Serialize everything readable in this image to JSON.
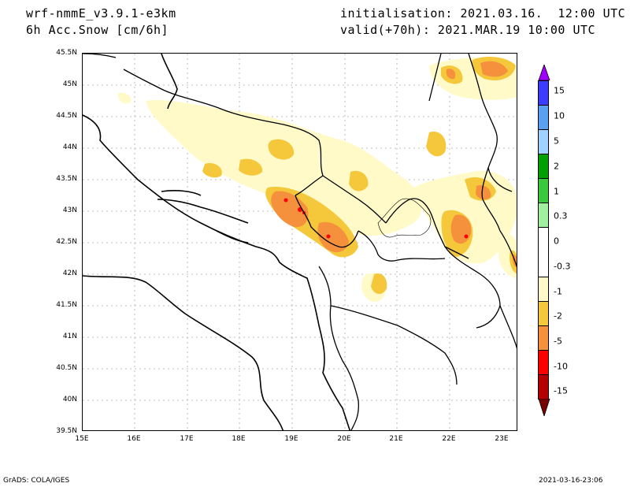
{
  "header": {
    "model": "wrf-nmmE_v3.9.1-e3km",
    "field": "6h Acc.Snow [cm/6h]",
    "init": "initialisation: 2021.03.16.  12:00 UTC",
    "valid": "valid(+70h): 2021.MAR.19 10:00 UTC"
  },
  "map": {
    "lat_labels": [
      "45.5N",
      "45N",
      "44.5N",
      "44N",
      "43.5N",
      "43N",
      "42.5N",
      "42N",
      "41.5N",
      "41N",
      "40.5N",
      "40N",
      "39.5N"
    ],
    "lon_labels": [
      "15E",
      "16E",
      "17E",
      "18E",
      "19E",
      "20E",
      "21E",
      "22E",
      "23E"
    ],
    "lat_range": [
      39.5,
      45.5
    ],
    "lon_range": [
      15,
      23.3
    ],
    "grid": "dotted"
  },
  "colorbar": {
    "labels": [
      "15",
      "10",
      "5",
      "2",
      "1",
      "0.3",
      "0",
      "-0.3",
      "-1",
      "-2",
      "-5",
      "-10",
      "-15"
    ],
    "colors": [
      "#a000ff",
      "#3c3cff",
      "#5aa0f0",
      "#a0d2ff",
      "#00a000",
      "#3cc83c",
      "#a0f0a0",
      "#ffffff",
      "#fffac8",
      "#f5c83c",
      "#f5913c",
      "#ff0000",
      "#b40000",
      "#780000"
    ]
  },
  "footer": {
    "left": "GrADS: COLA/IGES",
    "right": "2021-03-16-23:06"
  },
  "colors": {
    "snow_light": "#fffac8",
    "snow_1": "#f5c83c",
    "snow_2": "#f5913c",
    "snow_5": "#ff0000"
  }
}
